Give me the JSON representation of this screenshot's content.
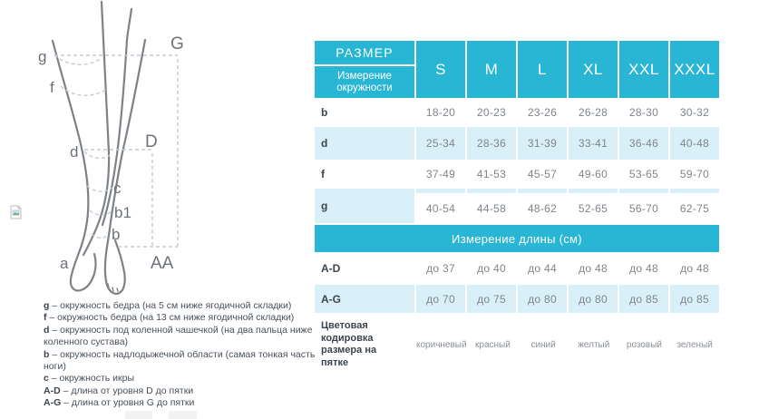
{
  "colors": {
    "teal": "#29b6d4",
    "light_blue": "#d9f0f8",
    "data_text": "#7f858b",
    "label_text": "#3c454f",
    "diagram_stroke": "#7d8287",
    "dashed_stroke": "#c5cacf"
  },
  "diagram": {
    "labels": {
      "g": "g",
      "f": "f",
      "d": "d",
      "c": "c",
      "b1": "b1",
      "b": "b",
      "a": "a",
      "G": "G",
      "D": "D",
      "AA": "AA"
    },
    "legend": [
      {
        "prefix": "g",
        "text": "– окружность бедра (на 5 см ниже ягодичной складки)"
      },
      {
        "prefix": "f",
        "text": "– окружность бедра (на 13 см ниже ягодичной складки)"
      },
      {
        "prefix": "d",
        "text": "– окружность под коленной чашечкой (на два пальца ниже коленного сустава)"
      },
      {
        "prefix": "b",
        "text": "– окружность надлодыжечной области (самая тонкая часть ноги)"
      },
      {
        "prefix": "c",
        "text": "– окружность икры"
      },
      {
        "prefix": "A-D",
        "text": "– длина от уровня D до пятки"
      },
      {
        "prefix": "A-G",
        "text": "– длина от уровня G до пятки"
      }
    ]
  },
  "table": {
    "header": {
      "title": "РАЗМЕР",
      "subtitle": "Измерение окружности",
      "sizes": [
        "S",
        "M",
        "L",
        "XL",
        "XXL",
        "XXXL"
      ]
    },
    "circumference_rows": [
      {
        "label": "b",
        "style": "plain",
        "values": [
          "18-20",
          "20-23",
          "23-26",
          "26-28",
          "28-30",
          "30-32"
        ]
      },
      {
        "label": "d",
        "style": "shaded",
        "values": [
          "25-34",
          "28-36",
          "31-39",
          "33-41",
          "36-46",
          "40-48"
        ]
      },
      {
        "label": "f",
        "style": "plain",
        "values": [
          "37-49",
          "41-53",
          "45-57",
          "49-60",
          "53-65",
          "59-70"
        ]
      },
      {
        "label": "g",
        "style": "label-shaded",
        "values": [
          "40-54",
          "44-58",
          "48-62",
          "52-65",
          "56-70",
          "62-75"
        ]
      }
    ],
    "length_header": "Измерение длины (см)",
    "length_rows": [
      {
        "label": "A-D",
        "style": "plain",
        "values": [
          "до 37",
          "до 40",
          "до 44",
          "до 48",
          "до 48",
          "до 48"
        ]
      },
      {
        "label": "A-G",
        "style": "shaded",
        "values": [
          "до 70",
          "до 75",
          "до 80",
          "до 80",
          "до 85",
          "до 85"
        ]
      }
    ],
    "color_row": {
      "label": "Цветовая кодировка размера на пятке",
      "values": [
        "коричневый",
        "красный",
        "синий",
        "желтый",
        "розовый",
        "зеленый"
      ]
    }
  },
  "chart_data": {
    "type": "table",
    "title": "РАЗМЕР / Измерение окружности",
    "columns": [
      "S",
      "M",
      "L",
      "XL",
      "XXL",
      "XXXL"
    ],
    "rows": [
      {
        "label": "b",
        "section": "Измерение окружности",
        "values": [
          "18-20",
          "20-23",
          "23-26",
          "26-28",
          "28-30",
          "30-32"
        ]
      },
      {
        "label": "d",
        "section": "Измерение окружности",
        "values": [
          "25-34",
          "28-36",
          "31-39",
          "33-41",
          "36-46",
          "40-48"
        ]
      },
      {
        "label": "f",
        "section": "Измерение окружности",
        "values": [
          "37-49",
          "41-53",
          "45-57",
          "49-60",
          "53-65",
          "59-70"
        ]
      },
      {
        "label": "g",
        "section": "Измерение окружности",
        "values": [
          "40-54",
          "44-58",
          "48-62",
          "52-65",
          "56-70",
          "62-75"
        ]
      },
      {
        "label": "A-D",
        "section": "Измерение длины (см)",
        "values": [
          "до 37",
          "до 40",
          "до 44",
          "до 48",
          "до 48",
          "до 48"
        ]
      },
      {
        "label": "A-G",
        "section": "Измерение длины (см)",
        "values": [
          "до 70",
          "до 75",
          "до 80",
          "до 80",
          "до 85",
          "до 85"
        ]
      },
      {
        "label": "Цветовая кодировка размера на пятке",
        "section": "",
        "values": [
          "коричневый",
          "красный",
          "синий",
          "желтый",
          "розовый",
          "зеленый"
        ]
      }
    ]
  }
}
